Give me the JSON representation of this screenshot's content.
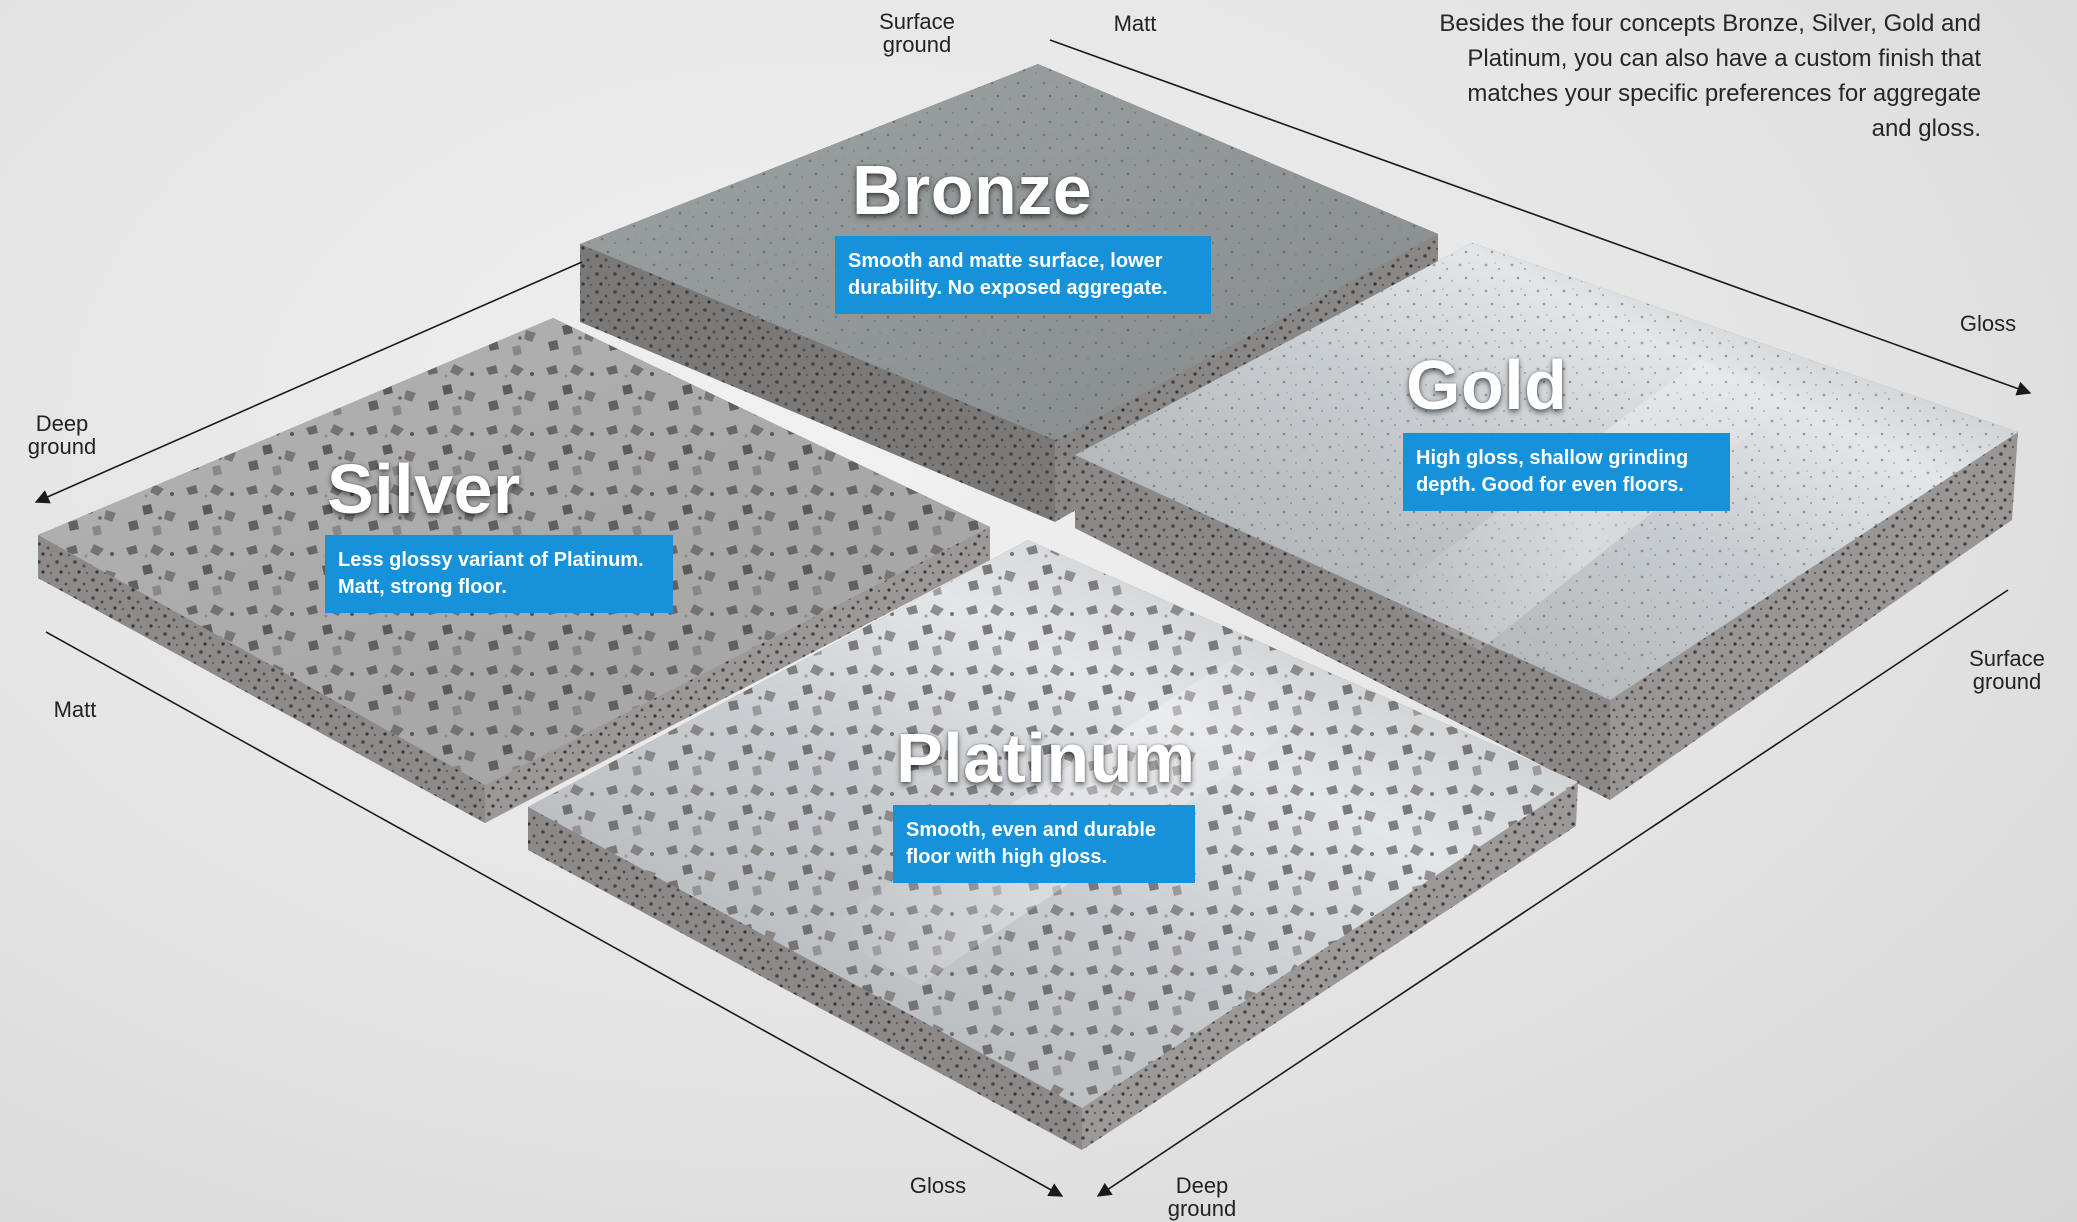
{
  "intro_text": "Besides the four concepts Bronze, Silver, Gold and Platinum, you can also have a custom finish that matches your specific preferences for aggregate and gloss.",
  "axis_labels": {
    "top_left_end": "Surface\nground",
    "top_right_start": "Matt",
    "right_upper_end": "Gloss",
    "left_upper_end": "Deep\nground",
    "left_lower_start": "Matt",
    "right_lower_start": "Surface\nground",
    "bottom_left_end": "Gloss",
    "bottom_right_end": "Deep\nground"
  },
  "concepts": {
    "bronze": {
      "name": "Bronze",
      "description": "Smooth and matte surface, lower durability. No exposed aggregate."
    },
    "silver": {
      "name": "Silver",
      "description": "Less glossy variant of Platinum. Matt, strong floor."
    },
    "gold": {
      "name": "Gold",
      "description": "High gloss, shallow grinding depth. Good for even floors."
    },
    "platinum": {
      "name": "Platinum",
      "description": "Smooth, even and durable floor with high gloss."
    }
  },
  "colors": {
    "label_background": "#1592da",
    "label_text": "#ffffff",
    "background": "#e4e4e4",
    "arrow": "#1a1a1a"
  }
}
